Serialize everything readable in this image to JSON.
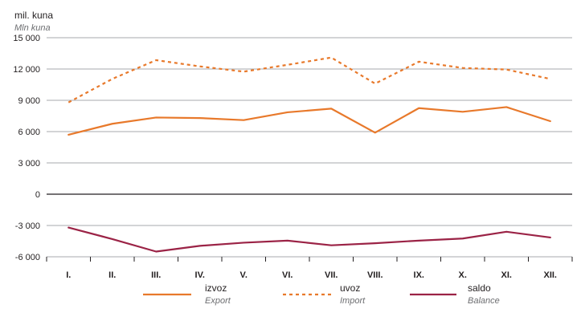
{
  "chart_data": {
    "type": "line",
    "unit_label": "mil. kuna",
    "unit_label_en": "Mln kuna",
    "categories": [
      "I.",
      "II.",
      "III.",
      "IV.",
      "V.",
      "VI.",
      "VII.",
      "VIII.",
      "IX.",
      "X.",
      "XI.",
      "XII."
    ],
    "y_ticks": [
      15000,
      12000,
      9000,
      6000,
      3000,
      0,
      -3000,
      -6000
    ],
    "y_tick_labels": [
      "15 000",
      "12 000",
      "9 000",
      "6 000",
      "3 000",
      "0",
      "-3 000",
      "-6 000"
    ],
    "ylim": [
      -6000,
      15000
    ],
    "grid": true,
    "legend_position": "bottom",
    "series": [
      {
        "name": "izvoz",
        "name_en": "Export",
        "color": "#e8792b",
        "style": "solid",
        "values": [
          5700,
          6750,
          7350,
          7300,
          7100,
          7850,
          8200,
          5900,
          8250,
          7900,
          8350,
          7000
        ]
      },
      {
        "name": "uvoz",
        "name_en": "Import",
        "color": "#e8792b",
        "style": "dashed",
        "values": [
          8800,
          11050,
          12850,
          12250,
          11750,
          12400,
          13100,
          10600,
          12700,
          12100,
          11950,
          11050
        ]
      },
      {
        "name": "saldo",
        "name_en": "Balance",
        "color": "#9b2346",
        "style": "solid",
        "values": [
          -3200,
          -4300,
          -5500,
          -4950,
          -4650,
          -4450,
          -4900,
          -4700,
          -4450,
          -4250,
          -3600,
          -4150
        ]
      }
    ]
  }
}
